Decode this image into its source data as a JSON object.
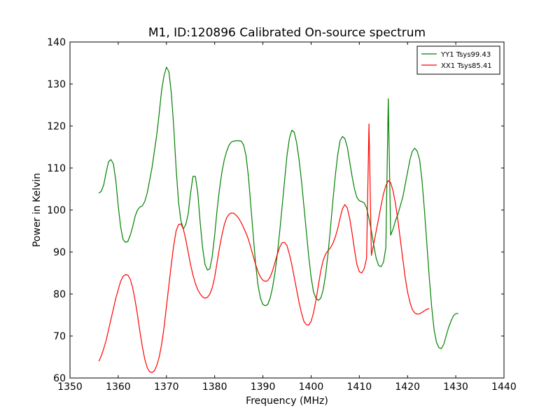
{
  "chart_data": {
    "type": "line",
    "title": "M1, ID:120896 Calibrated On-source spectrum",
    "xlabel": "Frequency (MHz)",
    "ylabel": "Power in Kelvin",
    "xlim": [
      1350,
      1440
    ],
    "ylim": [
      60,
      140
    ],
    "xticks": [
      1350,
      1360,
      1370,
      1380,
      1390,
      1400,
      1410,
      1420,
      1430,
      1440
    ],
    "yticks": [
      60,
      70,
      80,
      90,
      100,
      110,
      120,
      130,
      140
    ],
    "grid": false,
    "legend_position": "top-right",
    "series": [
      {
        "name": "YY1 Tsys99.43",
        "color": "#008000",
        "points": [
          [
            1356,
            104
          ],
          [
            1356.5,
            104.5
          ],
          [
            1357,
            106
          ],
          [
            1357.5,
            109
          ],
          [
            1358,
            111.5
          ],
          [
            1358.5,
            112
          ],
          [
            1359,
            111
          ],
          [
            1359.5,
            107
          ],
          [
            1360,
            101
          ],
          [
            1360.5,
            96
          ],
          [
            1361,
            93
          ],
          [
            1361.5,
            92.3
          ],
          [
            1362,
            92.5
          ],
          [
            1362.5,
            94
          ],
          [
            1363,
            96
          ],
          [
            1363.5,
            98.5
          ],
          [
            1364,
            100
          ],
          [
            1364.5,
            100.7
          ],
          [
            1365,
            101
          ],
          [
            1365.5,
            102
          ],
          [
            1366,
            104
          ],
          [
            1366.5,
            107
          ],
          [
            1367,
            110
          ],
          [
            1367.5,
            114
          ],
          [
            1368,
            118
          ],
          [
            1368.5,
            123
          ],
          [
            1369,
            128.5
          ],
          [
            1369.5,
            132
          ],
          [
            1370,
            134
          ],
          [
            1370.5,
            133
          ],
          [
            1371,
            128
          ],
          [
            1371.5,
            120
          ],
          [
            1372,
            110
          ],
          [
            1372.5,
            102
          ],
          [
            1373,
            97.5
          ],
          [
            1373.5,
            95.5
          ],
          [
            1374,
            96.5
          ],
          [
            1374.5,
            99
          ],
          [
            1375,
            104
          ],
          [
            1375.5,
            108
          ],
          [
            1376,
            108
          ],
          [
            1376.5,
            104
          ],
          [
            1377,
            97
          ],
          [
            1377.5,
            91
          ],
          [
            1378,
            87
          ],
          [
            1378.5,
            85.7
          ],
          [
            1379,
            86
          ],
          [
            1379.5,
            89
          ],
          [
            1380,
            94
          ],
          [
            1380.5,
            100
          ],
          [
            1381,
            105
          ],
          [
            1381.5,
            109
          ],
          [
            1382,
            112
          ],
          [
            1382.5,
            114
          ],
          [
            1383,
            115.5
          ],
          [
            1383.5,
            116.2
          ],
          [
            1384,
            116.4
          ],
          [
            1384.5,
            116.5
          ],
          [
            1385,
            116.5
          ],
          [
            1385.5,
            116.4
          ],
          [
            1386,
            115.5
          ],
          [
            1386.5,
            113
          ],
          [
            1387,
            108
          ],
          [
            1387.5,
            101
          ],
          [
            1388,
            94
          ],
          [
            1388.5,
            87
          ],
          [
            1389,
            82
          ],
          [
            1389.5,
            79
          ],
          [
            1390,
            77.5
          ],
          [
            1390.5,
            77.2
          ],
          [
            1391,
            77.5
          ],
          [
            1391.5,
            79
          ],
          [
            1392,
            81.5
          ],
          [
            1392.5,
            85
          ],
          [
            1393,
            89.5
          ],
          [
            1393.5,
            95
          ],
          [
            1394,
            101
          ],
          [
            1394.5,
            107
          ],
          [
            1395,
            113
          ],
          [
            1395.5,
            117
          ],
          [
            1396,
            119
          ],
          [
            1396.5,
            118.5
          ],
          [
            1397,
            116
          ],
          [
            1397.5,
            112
          ],
          [
            1398,
            107
          ],
          [
            1398.5,
            101
          ],
          [
            1399,
            95
          ],
          [
            1399.5,
            89
          ],
          [
            1400,
            84
          ],
          [
            1400.5,
            80.5
          ],
          [
            1401,
            79
          ],
          [
            1401.5,
            78.5
          ],
          [
            1402,
            79
          ],
          [
            1402.5,
            81
          ],
          [
            1403,
            84.5
          ],
          [
            1403.5,
            89.5
          ],
          [
            1404,
            95.5
          ],
          [
            1404.5,
            102
          ],
          [
            1405,
            108
          ],
          [
            1405.5,
            113
          ],
          [
            1406,
            116.5
          ],
          [
            1406.5,
            117.5
          ],
          [
            1407,
            117
          ],
          [
            1407.5,
            115
          ],
          [
            1408,
            111.5
          ],
          [
            1408.5,
            108
          ],
          [
            1409,
            105
          ],
          [
            1409.5,
            103
          ],
          [
            1410,
            102.2
          ],
          [
            1410.5,
            102
          ],
          [
            1411,
            101.7
          ],
          [
            1411.5,
            100.5
          ],
          [
            1412,
            98
          ],
          [
            1412.5,
            95
          ],
          [
            1413,
            91.5
          ],
          [
            1413.5,
            88.5
          ],
          [
            1414,
            86.8
          ],
          [
            1414.5,
            86.5
          ],
          [
            1415,
            87.5
          ],
          [
            1415.5,
            91
          ],
          [
            1416,
            126.5
          ],
          [
            1416.5,
            94
          ],
          [
            1417,
            95.5
          ],
          [
            1417.5,
            97.5
          ],
          [
            1418,
            99
          ],
          [
            1418.5,
            101
          ],
          [
            1419,
            103
          ],
          [
            1419.5,
            106
          ],
          [
            1420,
            109
          ],
          [
            1420.5,
            112
          ],
          [
            1421,
            114
          ],
          [
            1421.5,
            114.7
          ],
          [
            1422,
            114
          ],
          [
            1422.5,
            112
          ],
          [
            1423,
            107
          ],
          [
            1423.5,
            100
          ],
          [
            1424,
            92
          ],
          [
            1424.5,
            84
          ],
          [
            1425,
            77
          ],
          [
            1425.5,
            71.5
          ],
          [
            1426,
            68.5
          ],
          [
            1426.5,
            67.2
          ],
          [
            1427,
            67
          ],
          [
            1427.5,
            68
          ],
          [
            1428,
            70
          ],
          [
            1428.5,
            72
          ],
          [
            1429,
            73.5
          ],
          [
            1429.5,
            74.8
          ],
          [
            1430,
            75.3
          ],
          [
            1430.5,
            75.4
          ]
        ]
      },
      {
        "name": "XX1 Tsys85.41",
        "color": "#ff0000",
        "points": [
          [
            1356,
            64
          ],
          [
            1356.5,
            65.3
          ],
          [
            1357,
            67
          ],
          [
            1357.5,
            69
          ],
          [
            1358,
            71.5
          ],
          [
            1358.5,
            74
          ],
          [
            1359,
            76.5
          ],
          [
            1359.5,
            79
          ],
          [
            1360,
            81
          ],
          [
            1360.5,
            83
          ],
          [
            1361,
            84.2
          ],
          [
            1361.5,
            84.6
          ],
          [
            1362,
            84.5
          ],
          [
            1362.5,
            83.5
          ],
          [
            1363,
            81.5
          ],
          [
            1363.5,
            78.5
          ],
          [
            1364,
            75
          ],
          [
            1364.5,
            71
          ],
          [
            1365,
            67.5
          ],
          [
            1365.5,
            64.5
          ],
          [
            1366,
            62.5
          ],
          [
            1366.5,
            61.5
          ],
          [
            1367,
            61.3
          ],
          [
            1367.5,
            61.7
          ],
          [
            1368,
            63
          ],
          [
            1368.5,
            65
          ],
          [
            1369,
            68
          ],
          [
            1369.5,
            72
          ],
          [
            1370,
            77
          ],
          [
            1370.5,
            82
          ],
          [
            1371,
            87
          ],
          [
            1371.5,
            91.5
          ],
          [
            1372,
            95
          ],
          [
            1372.5,
            96.5
          ],
          [
            1373,
            96.7
          ],
          [
            1373.5,
            95.5
          ],
          [
            1374,
            93
          ],
          [
            1374.5,
            90
          ],
          [
            1375,
            87
          ],
          [
            1375.5,
            84.5
          ],
          [
            1376,
            82.5
          ],
          [
            1376.5,
            81
          ],
          [
            1377,
            80
          ],
          [
            1377.5,
            79.3
          ],
          [
            1378,
            79
          ],
          [
            1378.5,
            79.2
          ],
          [
            1379,
            80
          ],
          [
            1379.5,
            81.5
          ],
          [
            1380,
            84
          ],
          [
            1380.5,
            87.5
          ],
          [
            1381,
            91
          ],
          [
            1381.5,
            94
          ],
          [
            1382,
            96.5
          ],
          [
            1382.5,
            98.2
          ],
          [
            1383,
            99
          ],
          [
            1383.5,
            99.3
          ],
          [
            1384,
            99.2
          ],
          [
            1384.5,
            98.7
          ],
          [
            1385,
            98
          ],
          [
            1385.5,
            97
          ],
          [
            1386,
            95.8
          ],
          [
            1386.5,
            94.5
          ],
          [
            1387,
            93
          ],
          [
            1387.5,
            91
          ],
          [
            1388,
            89
          ],
          [
            1388.5,
            87
          ],
          [
            1389,
            85.3
          ],
          [
            1389.5,
            84
          ],
          [
            1390,
            83.3
          ],
          [
            1390.5,
            83
          ],
          [
            1391,
            83.2
          ],
          [
            1391.5,
            84
          ],
          [
            1392,
            85.5
          ],
          [
            1392.5,
            87.5
          ],
          [
            1393,
            89.5
          ],
          [
            1393.5,
            91.2
          ],
          [
            1394,
            92.2
          ],
          [
            1394.5,
            92.3
          ],
          [
            1395,
            91.5
          ],
          [
            1395.5,
            89.5
          ],
          [
            1396,
            87
          ],
          [
            1396.5,
            84
          ],
          [
            1397,
            81
          ],
          [
            1397.5,
            78
          ],
          [
            1398,
            75.5
          ],
          [
            1398.5,
            73.5
          ],
          [
            1399,
            72.7
          ],
          [
            1399.5,
            72.6
          ],
          [
            1400,
            73.5
          ],
          [
            1400.5,
            75.5
          ],
          [
            1401,
            78.5
          ],
          [
            1401.5,
            82
          ],
          [
            1402,
            85.5
          ],
          [
            1402.5,
            88
          ],
          [
            1403,
            89.5
          ],
          [
            1403.5,
            90.3
          ],
          [
            1404,
            91
          ],
          [
            1404.5,
            92
          ],
          [
            1405,
            93.5
          ],
          [
            1405.5,
            95.5
          ],
          [
            1406,
            98
          ],
          [
            1406.5,
            100.3
          ],
          [
            1407,
            101.3
          ],
          [
            1407.5,
            100.5
          ],
          [
            1408,
            98
          ],
          [
            1408.5,
            94.5
          ],
          [
            1409,
            90.5
          ],
          [
            1409.5,
            87
          ],
          [
            1410,
            85.3
          ],
          [
            1410.5,
            85
          ],
          [
            1411,
            86
          ],
          [
            1411.5,
            88.5
          ],
          [
            1412,
            120.5
          ],
          [
            1412.5,
            89.2
          ],
          [
            1413,
            92
          ],
          [
            1413.5,
            95
          ],
          [
            1414,
            98
          ],
          [
            1414.5,
            101
          ],
          [
            1415,
            103.8
          ],
          [
            1415.5,
            105.8
          ],
          [
            1416,
            107
          ],
          [
            1416.5,
            106.5
          ],
          [
            1417,
            104.5
          ],
          [
            1417.5,
            101.5
          ],
          [
            1418,
            97.5
          ],
          [
            1418.5,
            93
          ],
          [
            1419,
            88.5
          ],
          [
            1419.5,
            84
          ],
          [
            1420,
            80.5
          ],
          [
            1420.5,
            78
          ],
          [
            1421,
            76.3
          ],
          [
            1421.5,
            75.5
          ],
          [
            1422,
            75.2
          ],
          [
            1422.5,
            75.3
          ],
          [
            1423,
            75.6
          ],
          [
            1423.5,
            76
          ],
          [
            1424,
            76.4
          ],
          [
            1424.5,
            76.5
          ]
        ]
      }
    ]
  }
}
